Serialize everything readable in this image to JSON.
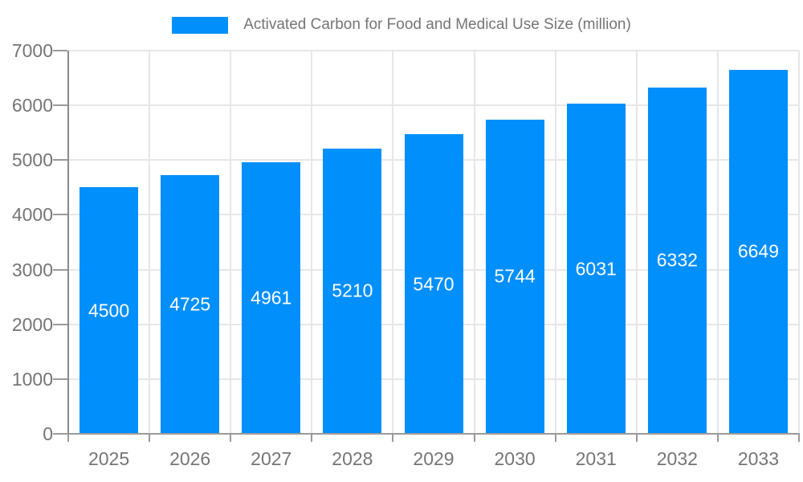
{
  "chart_data": {
    "type": "bar",
    "title": "Activated Carbon for Food and Medical Use Size (million)",
    "categories": [
      "2025",
      "2026",
      "2027",
      "2028",
      "2029",
      "2030",
      "2031",
      "2032",
      "2033"
    ],
    "values": [
      4500,
      4725,
      4961,
      5210,
      5470,
      5744,
      6031,
      6332,
      6649
    ],
    "xlabel": "",
    "ylabel": "",
    "ylim": [
      0,
      7000
    ],
    "ytick_step": 1000,
    "ytick_labels": [
      "0",
      "1000",
      "2000",
      "3000",
      "4000",
      "5000",
      "6000",
      "7000"
    ],
    "grid": true,
    "legend_position": "top",
    "value_labels_shown": true,
    "colors": {
      "bar": "#008FFB",
      "value_text": "#FFFFFF",
      "axis_text": "#757575",
      "gridline": "#E7E7E7",
      "axis_line": "#9A9A9A"
    }
  }
}
